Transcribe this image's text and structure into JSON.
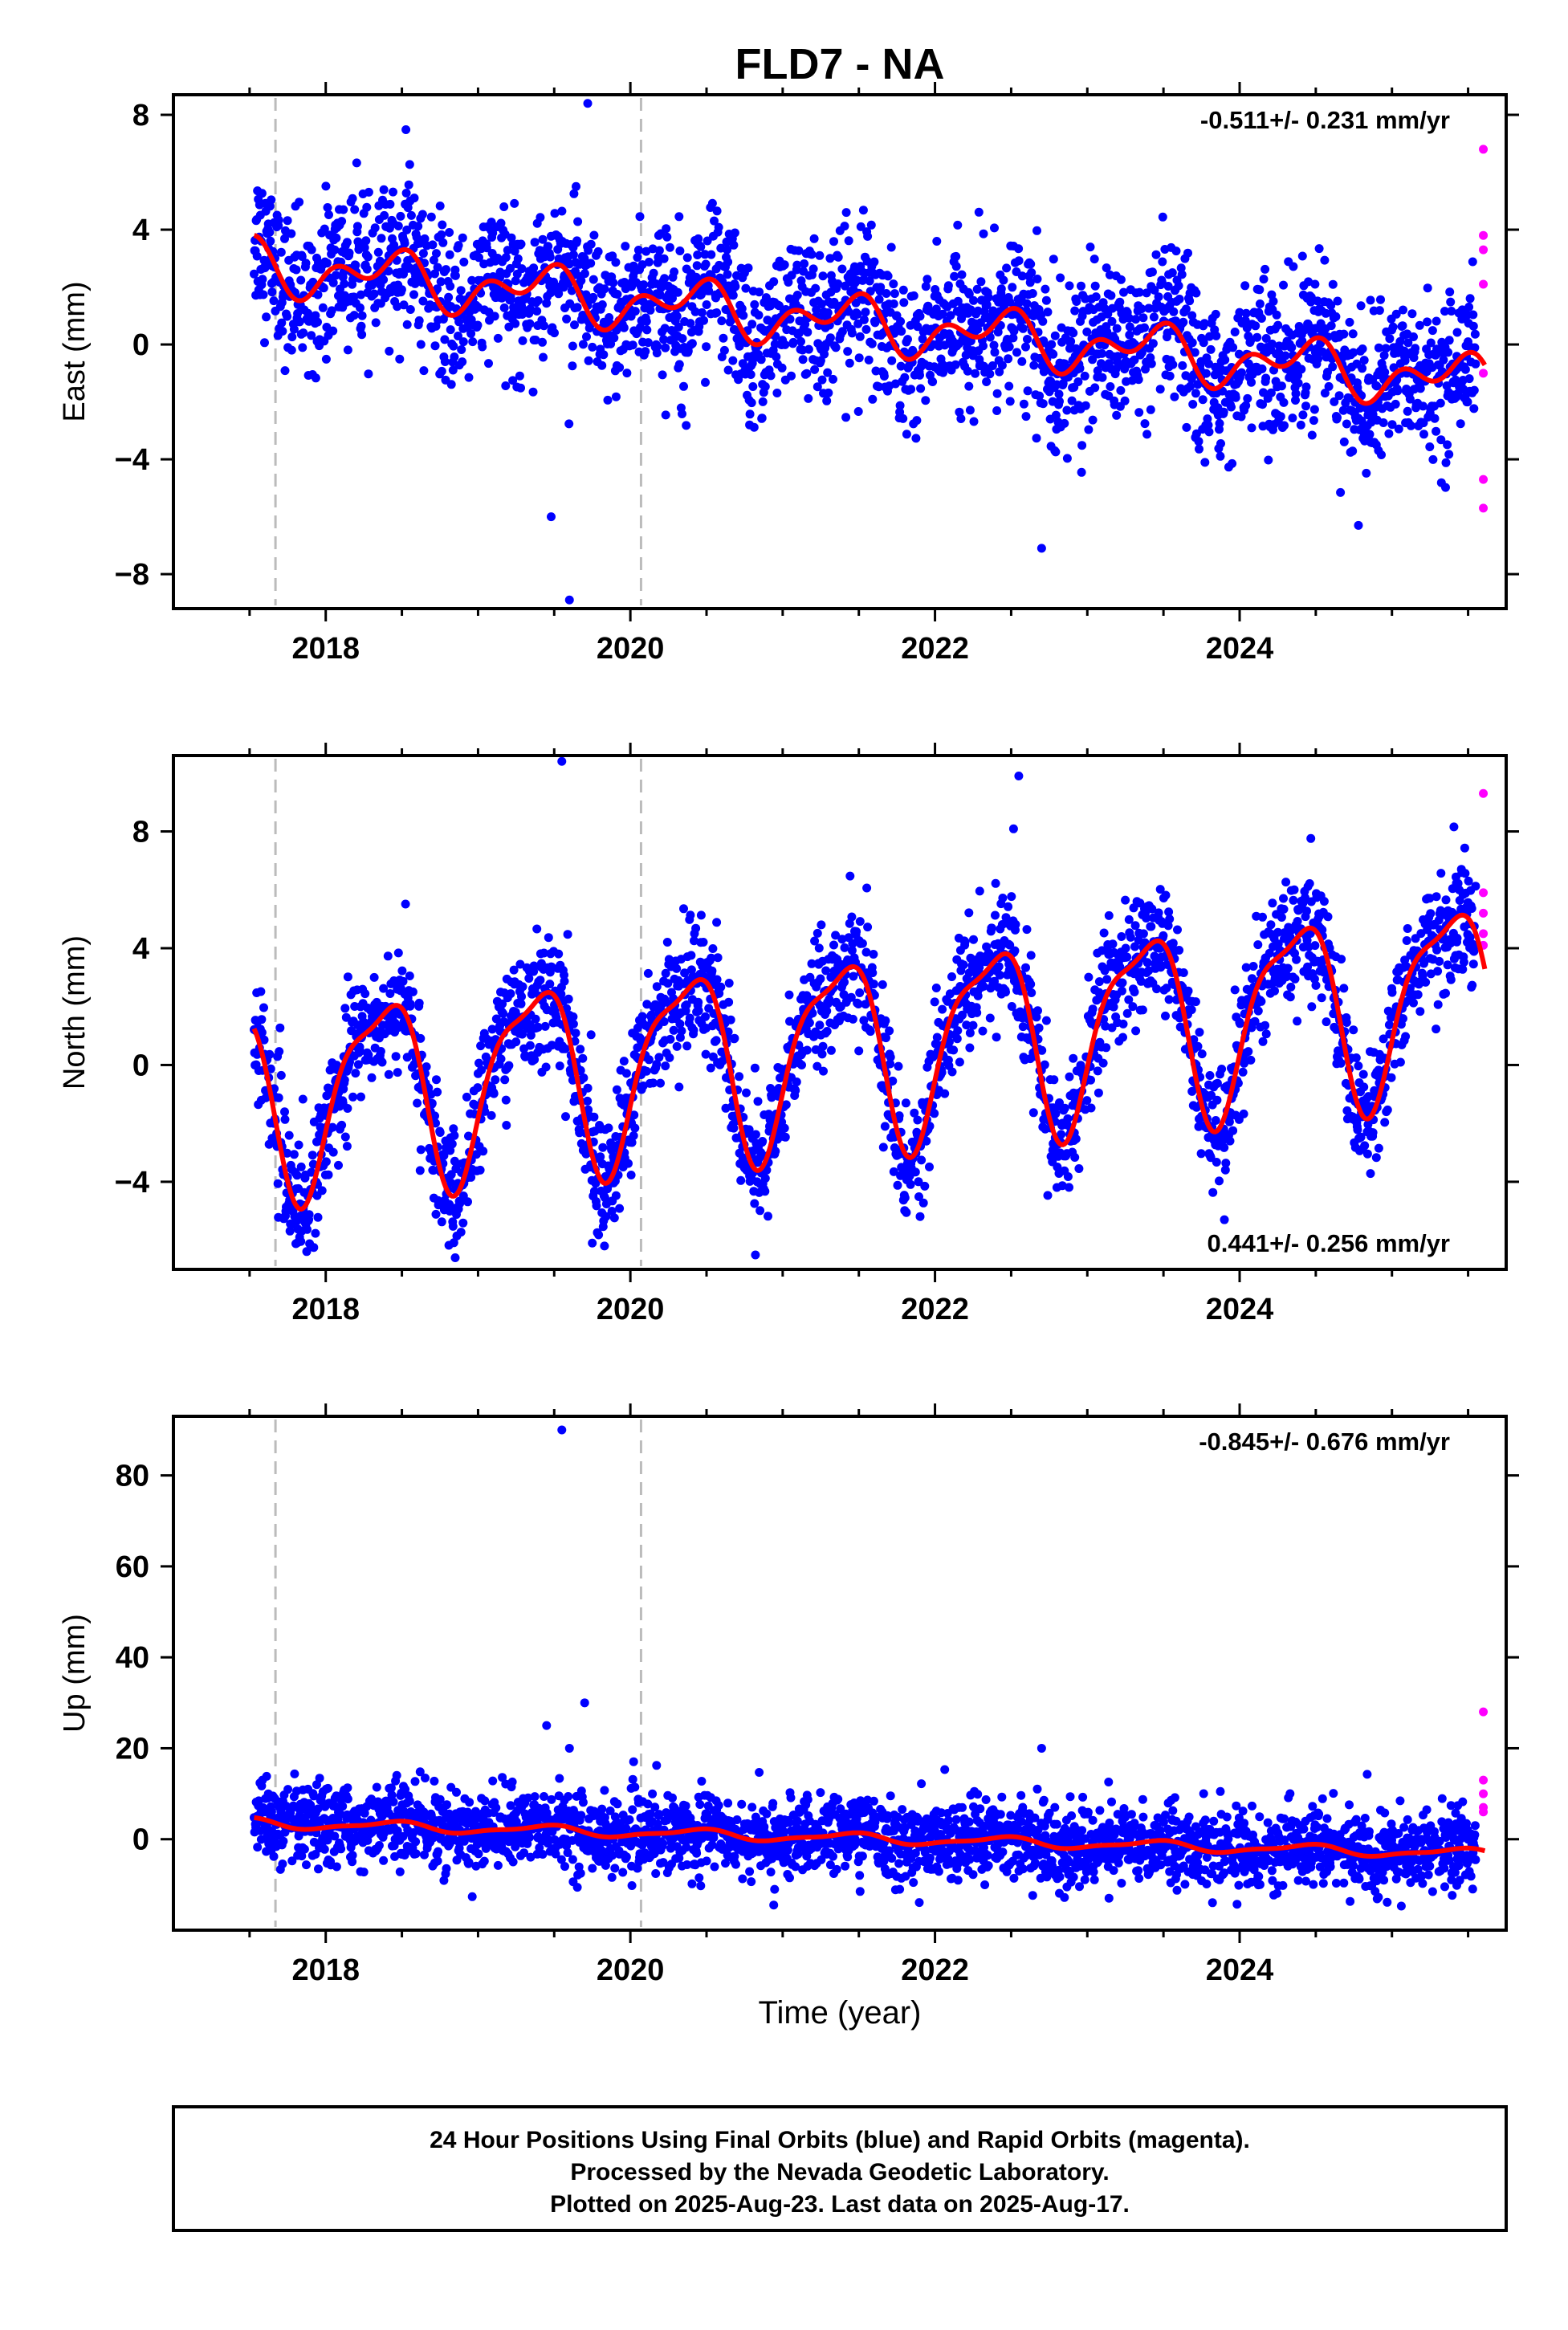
{
  "title": "FLD7 - NA",
  "xlabel": "Time (year)",
  "footer": [
    "24 Hour Positions Using Final Orbits (blue) and Rapid Orbits (magenta).",
    "Processed by the Nevada Geodetic Laboratory.",
    "Plotted on 2025-Aug-23. Last data on 2025-Aug-17."
  ],
  "colors": {
    "final": "#0000ff",
    "rapid": "#ff00ff",
    "model": "#ff0000",
    "event": "#bbbbbb"
  },
  "chart_data": [
    {
      "type": "scatter",
      "ylabel": "East (mm)",
      "rate": "-0.511+/- 0.231 mm/yr",
      "rate_position": "top-right",
      "xlim": [
        2017.0,
        2025.75
      ],
      "ylim": [
        -9.2,
        8.7
      ],
      "xticks": [
        2018,
        2020,
        2022,
        2024
      ],
      "yticks": [
        -8,
        -4,
        0,
        4,
        8
      ],
      "ytick_labels": [
        "−8",
        "−4",
        "0",
        "4",
        "8"
      ],
      "event_lines": [
        2017.67,
        2020.07
      ],
      "final_span": [
        2017.53,
        2025.55
      ],
      "rapid": [
        [
          2025.6,
          6.8
        ],
        [
          2025.6,
          3.8
        ],
        [
          2025.6,
          3.3
        ],
        [
          2025.6,
          2.1
        ],
        [
          2025.6,
          -1.0
        ],
        [
          2025.6,
          -4.7
        ],
        [
          2025.6,
          -5.7
        ]
      ],
      "outliers": [
        [
          2019.6,
          -8.9
        ],
        [
          2019.48,
          -6.0
        ],
        [
          2019.72,
          8.4
        ],
        [
          2022.7,
          -7.1
        ],
        [
          2024.78,
          -6.3
        ]
      ],
      "model": {
        "trend": [
          2017.5,
          2.8,
          -0.511
        ],
        "annual": [
          -0.55,
          0.35
        ],
        "semiannual": [
          0.45,
          0.35
        ],
        "offsets": []
      },
      "scatter_sd": 1.3
    },
    {
      "type": "scatter",
      "ylabel": "North (mm)",
      "rate": "0.441+/- 0.256 mm/yr",
      "rate_position": "bottom-right",
      "xlim": [
        2017.0,
        2025.75
      ],
      "ylim": [
        -7.0,
        10.6
      ],
      "xticks": [
        2018,
        2020,
        2022,
        2024
      ],
      "yticks": [
        -4,
        0,
        4,
        8
      ],
      "ytick_labels": [
        "−4",
        "0",
        "4",
        "8"
      ],
      "event_lines": [
        2017.67,
        2020.07
      ],
      "final_span": [
        2017.53,
        2025.55
      ],
      "rapid": [
        [
          2025.6,
          9.3
        ],
        [
          2025.6,
          5.9
        ],
        [
          2025.6,
          5.2
        ],
        [
          2025.6,
          4.5
        ],
        [
          2025.6,
          4.1
        ]
      ],
      "outliers": [
        [
          2019.55,
          10.4
        ],
        [
          2019.75,
          -6.1
        ],
        [
          2018.85,
          -6.6
        ],
        [
          2023.9,
          -5.3
        ],
        [
          2022.55,
          9.9
        ]
      ],
      "model": {
        "trend": [
          2017.5,
          -1.1,
          0.441
        ],
        "annual": [
          -2.0,
          2.4
        ],
        "semiannual": [
          0.6,
          0.7
        ],
        "offsets": []
      },
      "scatter_sd": 1.05
    },
    {
      "type": "scatter",
      "ylabel": "Up (mm)",
      "rate": "-0.845+/- 0.676 mm/yr",
      "rate_position": "top-right",
      "xlim": [
        2017.0,
        2025.75
      ],
      "ylim": [
        -20,
        93
      ],
      "xticks": [
        2018,
        2020,
        2022,
        2024
      ],
      "yticks": [
        0,
        20,
        40,
        60,
        80
      ],
      "ytick_labels": [
        "0",
        "20",
        "40",
        "60",
        "80"
      ],
      "event_lines": [
        2017.67,
        2020.07
      ],
      "final_span": [
        2017.53,
        2025.55
      ],
      "rapid": [
        [
          2025.6,
          28
        ],
        [
          2025.6,
          13
        ],
        [
          2025.6,
          10
        ],
        [
          2025.6,
          7
        ],
        [
          2025.6,
          6
        ]
      ],
      "outliers": [
        [
          2019.55,
          90
        ],
        [
          2019.7,
          30
        ],
        [
          2019.45,
          25
        ],
        [
          2019.6,
          20
        ],
        [
          2022.7,
          20
        ]
      ],
      "model": {
        "trend": [
          2017.5,
          3.6,
          -0.845
        ],
        "annual": [
          -0.9,
          0.4
        ],
        "semiannual": [
          0.3,
          0.2
        ],
        "offsets": []
      },
      "scatter_sd": 4.2
    }
  ]
}
